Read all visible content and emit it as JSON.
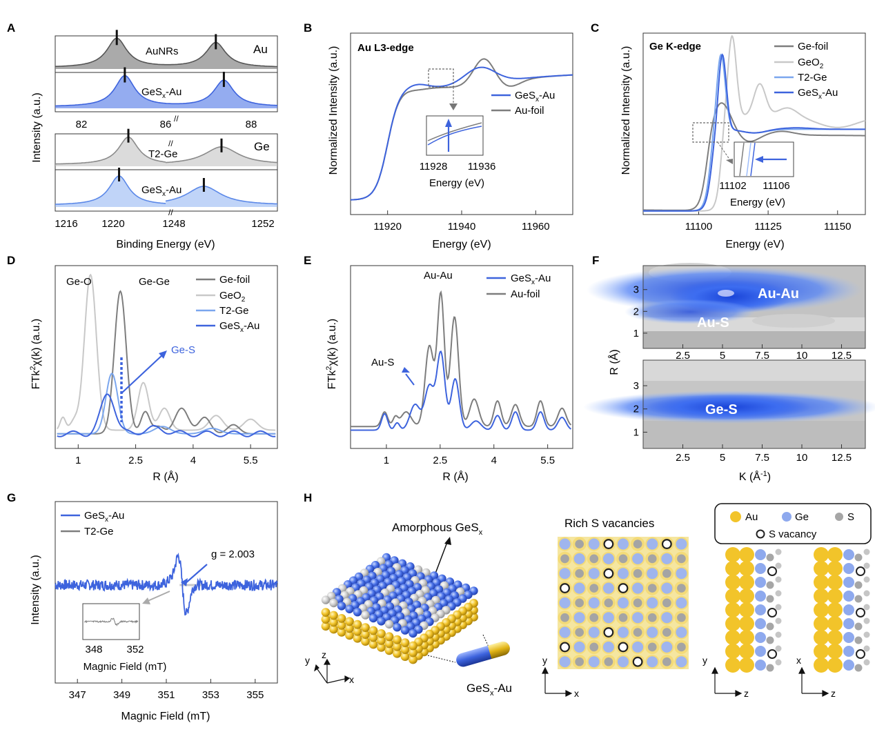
{
  "panels": {
    "A": {
      "label": "A",
      "ylabel": "Intensity (a.u.)",
      "xlabel": "Binding Energy (eV)",
      "au": {
        "element": "Au",
        "top_label": "AuNRs",
        "bottom_label": "GeSx-Au",
        "ticks": [
          "82",
          "86",
          "88"
        ],
        "peaks_top": [
          83.3,
          87.0
        ],
        "peaks_bottom": [
          83.6,
          87.3
        ]
      },
      "ge": {
        "element": "Ge",
        "top_label": "T2-Ge",
        "bottom_label": "GeSx-Au",
        "ticks": [
          "1216",
          "1220",
          "1248",
          "1252"
        ],
        "peaks_top": [
          1220.5,
          1250.8
        ],
        "peaks_bottom": [
          1219.8,
          1249.6
        ]
      }
    },
    "B": {
      "label": "B",
      "title": "Au L3-edge",
      "ylabel": "Normalized Intensity (a.u.)",
      "xlabel": "Energy (eV)",
      "xticks": [
        "11920",
        "11940",
        "11960"
      ],
      "xlim": [
        11910,
        11970
      ],
      "legend": [
        "GeSx-Au",
        "Au-foil"
      ],
      "inset_ticks": [
        "11928",
        "11936"
      ],
      "inset_xlabel": "Energy (eV)"
    },
    "C": {
      "label": "C",
      "title": "Ge K-edge",
      "ylabel": "Normalized Intensity (a.u.)",
      "xlabel": "Energy (eV)",
      "xticks": [
        "11100",
        "11125",
        "11150"
      ],
      "xlim": [
        11080,
        11160
      ],
      "legend": [
        "Ge-foil",
        "GeO2",
        "T2-Ge",
        "GeSx-Au"
      ],
      "inset_ticks": [
        "11102",
        "11106"
      ],
      "inset_xlabel": "Energy (eV)"
    },
    "D": {
      "label": "D",
      "ylabel": "FTk2χ(k) (a.u.)",
      "xlabel": "R (Å)",
      "xticks": [
        "1",
        "2.5",
        "4",
        "5.5"
      ],
      "xlim": [
        0.4,
        6.2
      ],
      "legend": [
        "Ge-foil",
        "GeO2",
        "T2-Ge",
        "GeSx-Au"
      ],
      "annotations": [
        "Ge-O",
        "Ge-Ge",
        "Ge-S"
      ]
    },
    "E": {
      "label": "E",
      "ylabel": "FTk2χ(k) (a.u.)",
      "xlabel": "R (Å)",
      "xticks": [
        "1",
        "2.5",
        "4",
        "5.5"
      ],
      "xlim": [
        0.0,
        6.2
      ],
      "legend": [
        "GeSx-Au",
        "Au-foil"
      ],
      "annotations": [
        "Au-Au",
        "Au-S"
      ]
    },
    "F": {
      "label": "F",
      "ylabel": "R (Å)",
      "xlabel": "K (Å-1)",
      "xticks": [
        "2.5",
        "5",
        "7.5",
        "10",
        "12.5"
      ],
      "yticks": [
        "1",
        "2",
        "3"
      ],
      "annotations_top": [
        "Au-Au",
        "Au-S"
      ],
      "annotations_bottom": [
        "Ge-S"
      ]
    },
    "G": {
      "label": "G",
      "ylabel": "Intensity (a.u.)",
      "xlabel": "Magnic Field (mT)",
      "xticks": [
        "347",
        "349",
        "351",
        "353",
        "355"
      ],
      "xlim": [
        346,
        356
      ],
      "legend": [
        "GeSx-Au",
        "T2-Ge"
      ],
      "annotation": "g = 2.003",
      "inset_ticks": [
        "348",
        "352"
      ],
      "inset_xlabel": "Magnic Field (mT)"
    },
    "H": {
      "label": "H",
      "amorphous_label": "Amorphous GeSx",
      "rod_label": "GeSx-Au",
      "vacancy_title": "Rich S vacancies",
      "legend": [
        "Au",
        "Ge",
        "S",
        "S vacancy"
      ],
      "axes_3d": [
        "x",
        "y",
        "z"
      ],
      "axes_top": [
        "x",
        "y"
      ],
      "axes_side1": [
        "z",
        "y"
      ],
      "axes_side2": [
        "z",
        "x"
      ]
    }
  },
  "colors": {
    "blue": "#3d63dd",
    "lightblue": "#7aa6ee",
    "gray": "#7d7d7d",
    "lightgray": "#c8c8c8",
    "gold": "#f2c42a"
  },
  "chart_data": [
    {
      "type": "area",
      "panel": "A",
      "series": [
        {
          "name": "AuNRs"
        },
        {
          "name": "GeSx-Au"
        },
        {
          "name": "T2-Ge"
        }
      ]
    },
    {
      "type": "line",
      "panel": "B",
      "series": [
        {
          "name": "GeSx-Au"
        },
        {
          "name": "Au-foil"
        }
      ]
    },
    {
      "type": "line",
      "panel": "C",
      "series": [
        {
          "name": "Ge-foil"
        },
        {
          "name": "GeO2"
        },
        {
          "name": "T2-Ge"
        },
        {
          "name": "GeSx-Au"
        }
      ]
    },
    {
      "type": "line",
      "panel": "D",
      "series": [
        {
          "name": "Ge-foil"
        },
        {
          "name": "GeO2"
        },
        {
          "name": "T2-Ge"
        },
        {
          "name": "GeSx-Au"
        }
      ]
    },
    {
      "type": "line",
      "panel": "E",
      "series": [
        {
          "name": "GeSx-Au"
        },
        {
          "name": "Au-foil"
        }
      ]
    },
    {
      "type": "heatmap",
      "panel": "F"
    },
    {
      "type": "line",
      "panel": "G",
      "series": [
        {
          "name": "GeSx-Au"
        },
        {
          "name": "T2-Ge"
        }
      ]
    }
  ]
}
